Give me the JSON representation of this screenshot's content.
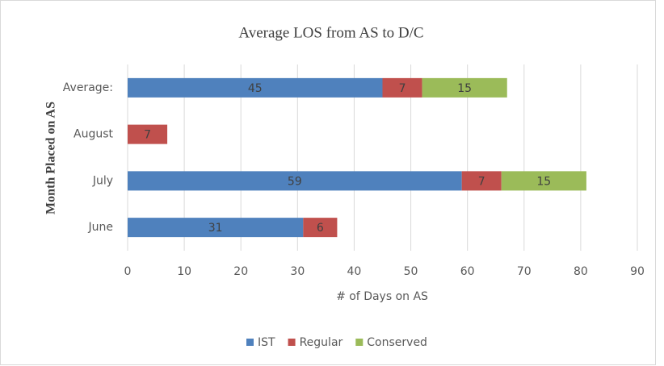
{
  "chart_data": {
    "type": "bar",
    "orientation": "horizontal",
    "stacked": true,
    "title": "Average LOS from AS to D/C",
    "x_label": "# of Days on AS",
    "y_label": "Month Placed on AS",
    "categories": [
      "June",
      "July",
      "August",
      "Average:"
    ],
    "series": [
      {
        "name": "IST",
        "color": "#4f81bd",
        "values": [
          31,
          59,
          null,
          45
        ]
      },
      {
        "name": "Regular",
        "color": "#c0504d",
        "values": [
          6,
          7,
          7,
          7
        ]
      },
      {
        "name": "Conserved",
        "color": "#9bbb59",
        "values": [
          null,
          15,
          null,
          15
        ]
      }
    ],
    "xlim": [
      0,
      90
    ],
    "xticks": [
      0,
      10,
      20,
      30,
      40,
      50,
      60,
      70,
      80,
      90
    ],
    "grid": true,
    "legend": "bottom"
  }
}
